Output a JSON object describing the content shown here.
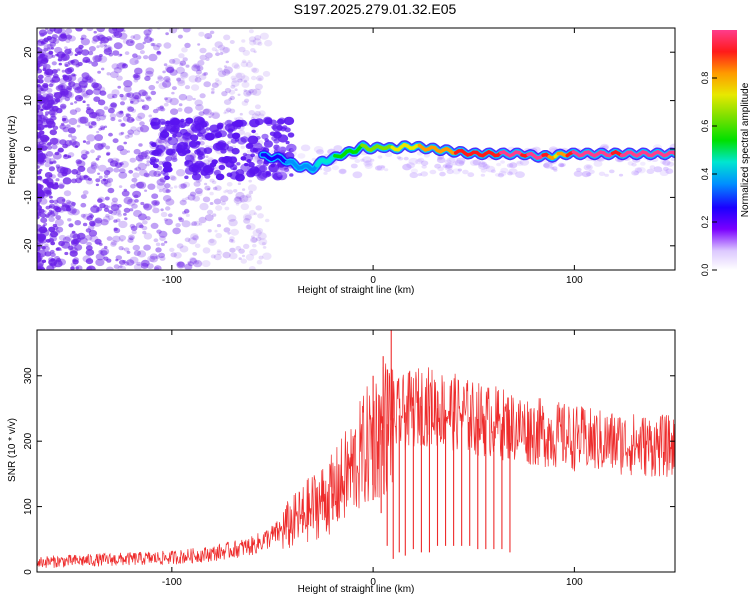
{
  "title": "S197.2025.279.01.32.E05",
  "colors": {
    "snr_line": "#ee2b2b",
    "spectrogram_dots": "#6a1fe8",
    "axis": "#000000"
  },
  "chart_data": [
    {
      "type": "heatmap",
      "name": "spectrogram",
      "xlabel": "Height of straight line (km)",
      "ylabel": "Frequency (Hz)",
      "xlim": [
        -167,
        150
      ],
      "ylim": [
        -25,
        25
      ],
      "x_ticks": [
        -100,
        0,
        100
      ],
      "y_ticks": [
        20,
        10,
        0,
        -10,
        -20
      ],
      "ridge": {
        "description_points_x": [
          -55,
          -45,
          -38,
          -30,
          -25,
          -20,
          -15,
          -10,
          -5,
          0,
          5,
          10,
          15,
          20,
          30,
          40,
          50,
          60,
          70,
          75,
          80,
          85,
          90,
          95,
          100,
          110,
          120,
          130,
          140,
          150
        ],
        "description_points_y": [
          -1.5,
          -2.0,
          -3.5,
          -4.0,
          -2.5,
          -2.0,
          -1.0,
          -0.5,
          0.5,
          0.0,
          0.5,
          0.0,
          0.5,
          0.5,
          0.0,
          -0.5,
          -1.0,
          -1.0,
          -1.0,
          -1.0,
          -1.5,
          -1.5,
          -1.5,
          -1.0,
          -1.0,
          -1.0,
          -1.0,
          -1.0,
          -1.0,
          -1.0
        ],
        "amplitude": [
          0.2,
          0.25,
          0.3,
          0.35,
          0.4,
          0.45,
          0.5,
          0.5,
          0.55,
          0.6,
          0.6,
          0.65,
          0.7,
          0.72,
          0.78,
          0.82,
          0.85,
          0.9,
          0.95,
          0.9,
          0.95,
          0.9,
          0.7,
          0.8,
          0.95,
          0.95,
          0.9,
          0.95,
          0.95,
          0.95
        ]
      },
      "colorbar": {
        "label": "Normalized spectral amplitude",
        "ticks": [
          "0.0",
          "0.2",
          "0.4",
          "0.6",
          "0.8"
        ],
        "range": [
          0,
          1
        ]
      }
    },
    {
      "type": "line",
      "name": "snr",
      "xlabel": "Height of straight line (km)",
      "ylabel": "SNR (10 * v/v)",
      "xlim": [
        -167,
        150
      ],
      "ylim": [
        0,
        370
      ],
      "x_ticks": [
        -100,
        0,
        100
      ],
      "y_ticks": [
        0,
        100,
        200,
        300
      ],
      "series": [
        {
          "name": "SNR",
          "x": [
            -167,
            -140,
            -120,
            -100,
            -80,
            -60,
            -50,
            -40,
            -30,
            -20,
            -10,
            0,
            5,
            10,
            20,
            25,
            30,
            40,
            50,
            60,
            70,
            80,
            90,
            100,
            110,
            120,
            130,
            140,
            150
          ],
          "values": [
            15,
            18,
            20,
            22,
            28,
            40,
            55,
            75,
            100,
            120,
            160,
            205,
            220,
            235,
            250,
            255,
            252,
            245,
            235,
            230,
            222,
            215,
            210,
            205,
            200,
            198,
            195,
            193,
            192
          ]
        }
      ],
      "spikes": {
        "x": [
          -35,
          -31,
          -20,
          0,
          4,
          7,
          10,
          13,
          16,
          20,
          24,
          28,
          32,
          36,
          40,
          44,
          48,
          52,
          56,
          60,
          64,
          68
        ],
        "low_values": [
          60,
          70,
          80,
          110,
          90,
          40,
          20,
          30,
          25,
          35,
          30,
          30,
          40,
          40,
          40,
          40,
          40,
          35,
          35,
          35,
          35,
          30
        ]
      },
      "peaks": {
        "x": [
          0,
          5,
          9
        ],
        "values": [
          300,
          330,
          370
        ]
      }
    }
  ]
}
